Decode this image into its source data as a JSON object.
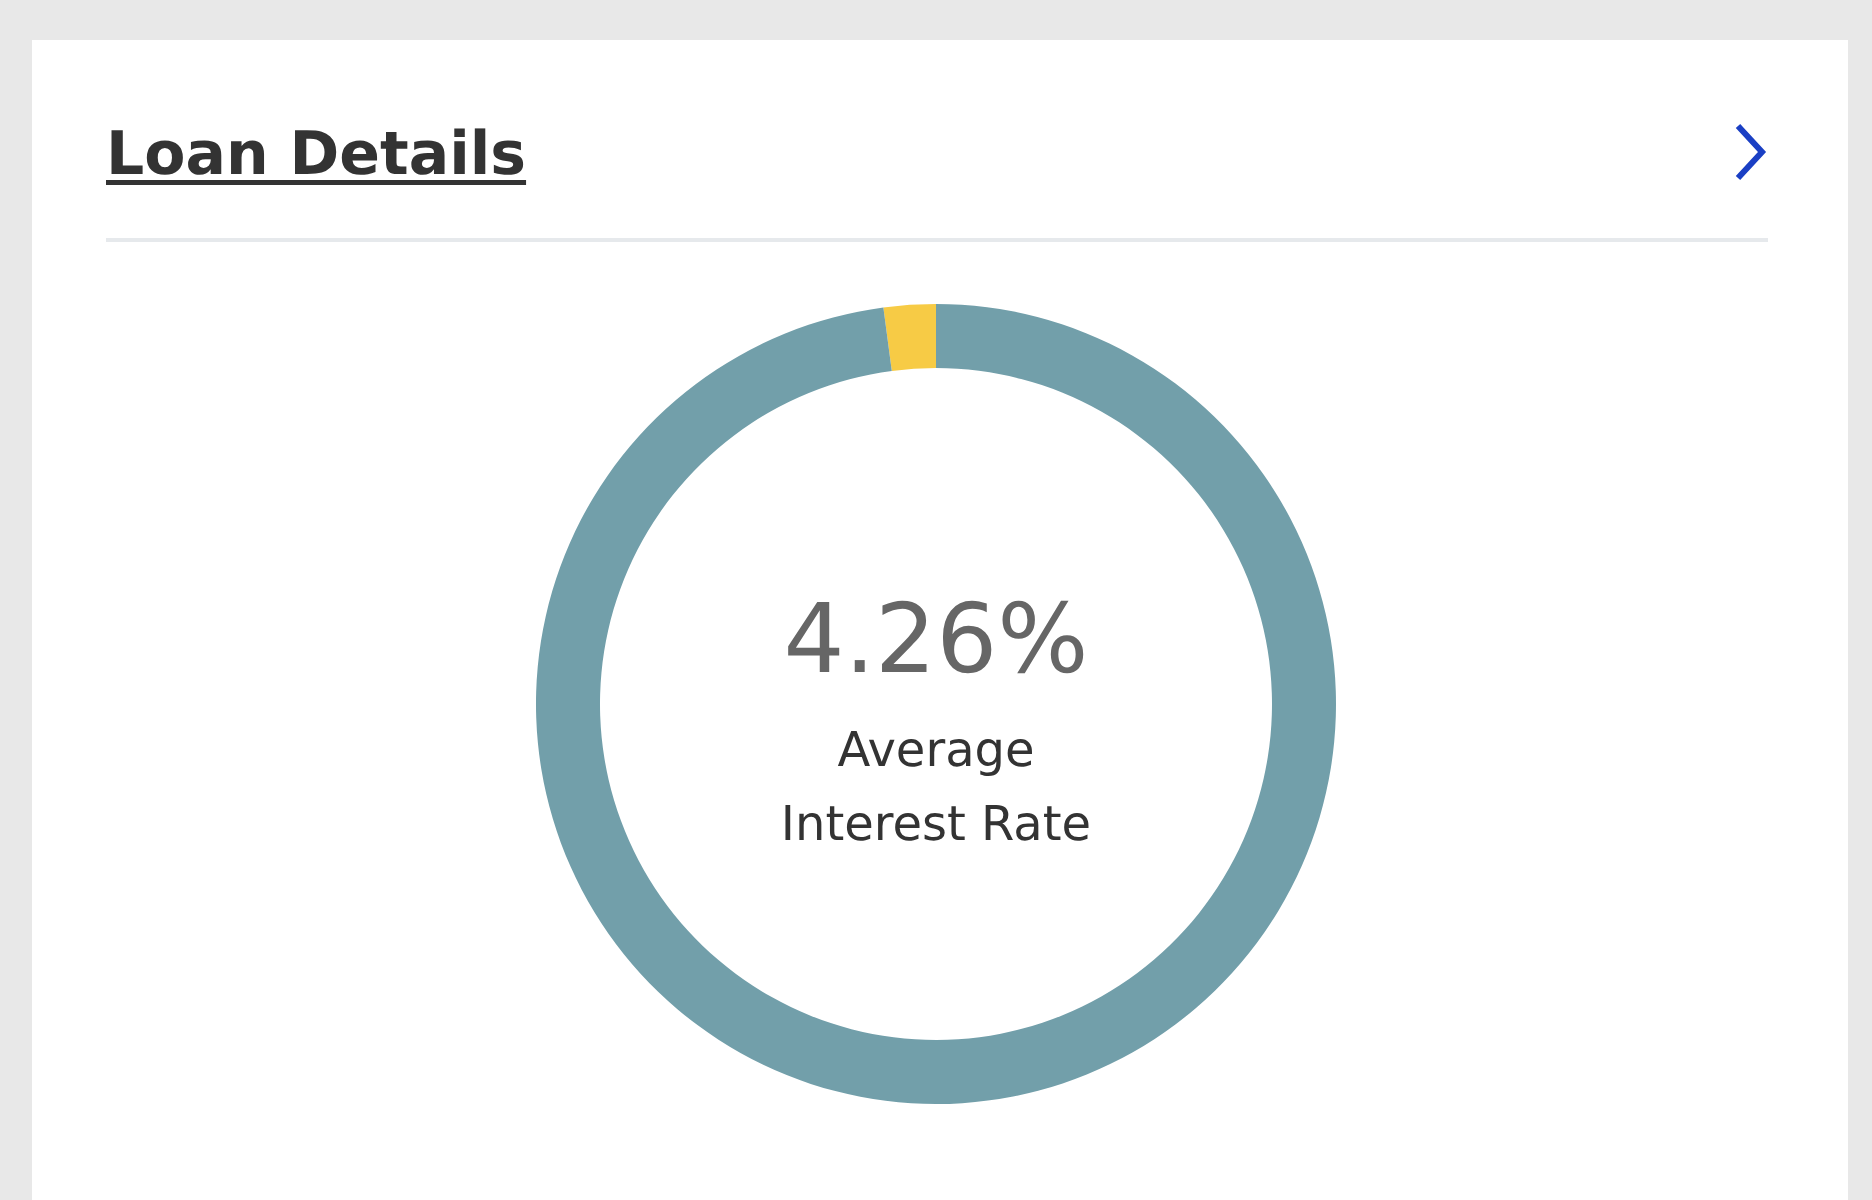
{
  "chart_data": {
    "type": "donut",
    "title": "Loan Details",
    "categories": [
      null,
      null
    ],
    "values": [
      2.1,
      97.9
    ],
    "colors": [
      "#f7cb45",
      "#729faa"
    ],
    "annotations": [
      "4.26%",
      "Average Interest Rate"
    ]
  }
}
